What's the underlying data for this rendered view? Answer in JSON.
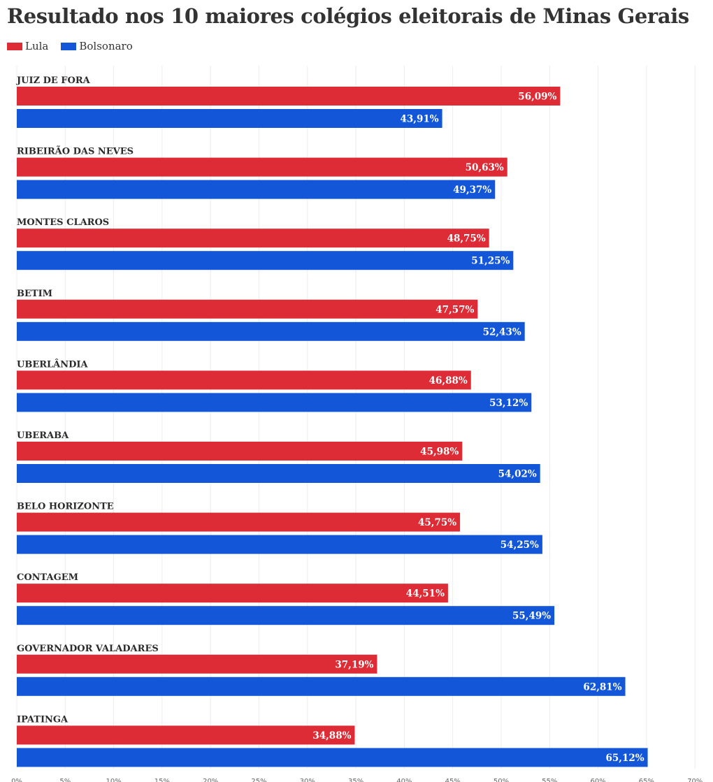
{
  "header": {
    "title": "Resultado nos 10 maiores colégios eleitorais de Minas Gerais"
  },
  "legend": [
    {
      "label": "Lula",
      "color": "#dd2c35"
    },
    {
      "label": "Bolsonaro",
      "color": "#1357d8"
    }
  ],
  "chart_data": {
    "type": "bar",
    "orientation": "horizontal",
    "title": "Resultado nos 10 maiores colégios eleitorais de Minas Gerais",
    "categories": [
      "JUIZ DE FORA",
      "RIBEIRÃO DAS NEVES",
      "MONTES CLAROS",
      "BETIM",
      "UBERLÂNDIA",
      "UBERABA",
      "BELO HORIZONTE",
      "CONTAGEM",
      "GOVERNADOR VALADARES",
      "IPATINGA"
    ],
    "series": [
      {
        "name": "Lula",
        "color": "#dd2c35",
        "values": [
          56.09,
          50.63,
          48.75,
          47.57,
          46.88,
          45.98,
          45.75,
          44.51,
          37.19,
          34.88
        ],
        "labels": [
          "56,09%",
          "50,63%",
          "48,75%",
          "47,57%",
          "46,88%",
          "45,98%",
          "45,75%",
          "44,51%",
          "37,19%",
          "34,88%"
        ]
      },
      {
        "name": "Bolsonaro",
        "color": "#1357d8",
        "values": [
          43.91,
          49.37,
          51.25,
          52.43,
          53.12,
          54.02,
          54.25,
          55.49,
          62.81,
          65.12
        ],
        "labels": [
          "43,91%",
          "49,37%",
          "51,25%",
          "52,43%",
          "53,12%",
          "54,02%",
          "54,25%",
          "55,49%",
          "62,81%",
          "65,12%"
        ]
      }
    ],
    "xlim": [
      0,
      70
    ],
    "xticks": [
      0,
      5,
      10,
      15,
      20,
      25,
      30,
      35,
      40,
      45,
      50,
      55,
      60,
      65,
      70
    ],
    "xtick_labels": [
      "0%",
      "5%",
      "10%",
      "15%",
      "20%",
      "25%",
      "30%",
      "35%",
      "40%",
      "45%",
      "50%",
      "55%",
      "60%",
      "65%",
      "70%"
    ],
    "grid": true,
    "legend_position": "top-left"
  }
}
